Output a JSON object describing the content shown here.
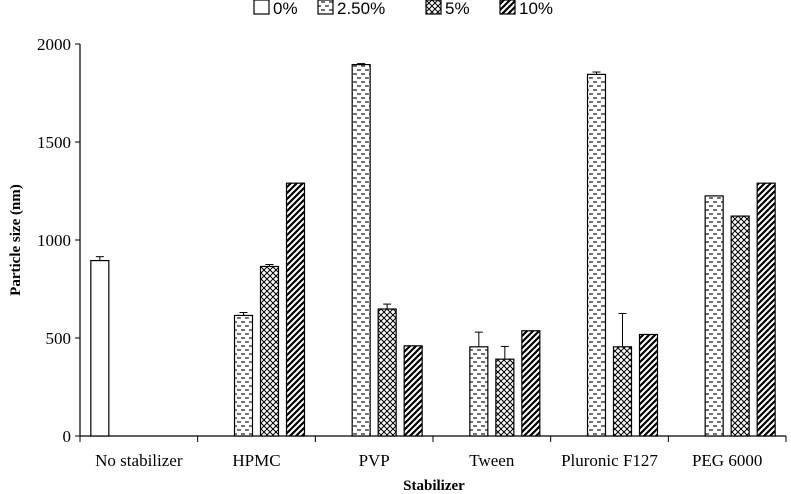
{
  "chart_data": {
    "type": "bar",
    "xlabel": "Stabilizer",
    "ylabel": "Particle size (nm)",
    "ylim": [
      0,
      2000
    ],
    "yticks": [
      "0",
      "500",
      "1000",
      "1500",
      "2000"
    ],
    "categories": [
      "No stabilizer",
      "HPMC",
      "PVP",
      "Tween",
      "Pluronic F127",
      "PEG 6000"
    ],
    "legend_position": "top",
    "grid": false,
    "series": [
      {
        "name": "0%",
        "pattern": "blank",
        "values": [
          895,
          null,
          null,
          null,
          null,
          null
        ],
        "errors": [
          20,
          null,
          null,
          null,
          null,
          null
        ]
      },
      {
        "name": "2.50%",
        "pattern": "dashes",
        "values": [
          null,
          615,
          1895,
          455,
          1845,
          1225
        ],
        "errors": [
          null,
          15,
          5,
          75,
          12,
          0
        ]
      },
      {
        "name": "5%",
        "pattern": "crosshatch",
        "values": [
          null,
          865,
          648,
          392,
          455,
          1122
        ],
        "errors": [
          null,
          10,
          25,
          65,
          170,
          0
        ]
      },
      {
        "name": "10%",
        "pattern": "diagonal",
        "values": [
          null,
          1290,
          460,
          537,
          518,
          1290
        ],
        "errors": [
          null,
          0,
          0,
          0,
          0,
          0
        ]
      }
    ]
  }
}
